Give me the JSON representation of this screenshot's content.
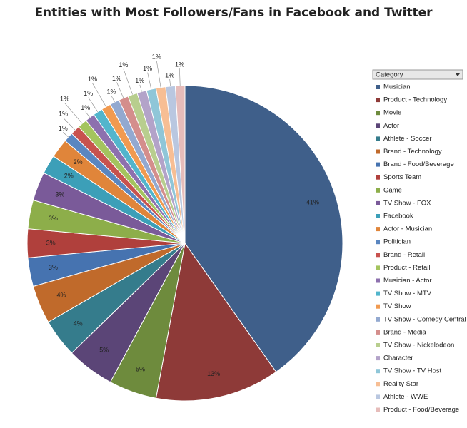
{
  "chart_data": {
    "type": "pie",
    "title": "Entities with Most Followers/Fans in Facebook and Twitter",
    "legend_title": "Category",
    "categories": [
      "Musician",
      "Product - Technology",
      "Movie",
      "Actor",
      "Athlete - Soccer",
      "Brand - Technology",
      "Brand - Food/Beverage",
      "Sports Team",
      "Game",
      "TV Show - FOX",
      "Facebook",
      "Actor - Musician",
      "Politician",
      "Brand - Retail",
      "Product - Retail",
      "Musician - Actor",
      "TV Show - MTV",
      "TV Show",
      "TV Show - Comedy Central",
      "Brand - Media",
      "TV Show - Nickelodeon",
      "Character",
      "TV Show - TV Host",
      "Reality Star",
      "Athlete - WWE",
      "Product - Food/Beverage"
    ],
    "values": [
      41,
      13,
      5,
      5,
      4,
      4,
      3,
      3,
      3,
      3,
      2,
      2,
      1,
      1,
      1,
      1,
      1,
      1,
      1,
      1,
      1,
      1,
      1,
      1,
      1,
      1
    ],
    "value_labels": [
      "41%",
      "13%",
      "5%",
      "5%",
      "4%",
      "4%",
      "3%",
      "3%",
      "3%",
      "3%",
      "2%",
      "2%",
      "1%",
      "1%",
      "1%",
      "1%",
      "1%",
      "1%",
      "1%",
      "1%",
      "1%",
      "1%",
      "1%",
      "1%",
      "1%",
      "1%"
    ],
    "colors": [
      "#3F5F8A",
      "#8E3A38",
      "#6E8B3D",
      "#5B4577",
      "#357C8C",
      "#C06A2B",
      "#4673B0",
      "#B0403C",
      "#8DAE4A",
      "#7A5A99",
      "#3C9FB8",
      "#E0853A",
      "#5A86C0",
      "#C8524E",
      "#A4C45E",
      "#8D70AE",
      "#52B5CC",
      "#F19A50",
      "#93A9D0",
      "#D48E8C",
      "#B8CE8E",
      "#B3A3C9",
      "#8FC6D8",
      "#F7BE94",
      "#B9C7E0",
      "#E6BCBA"
    ]
  }
}
